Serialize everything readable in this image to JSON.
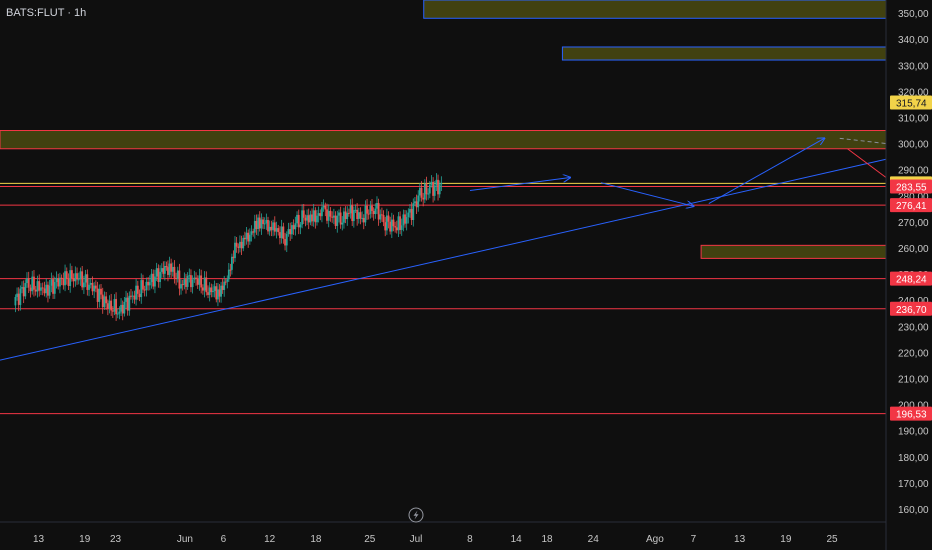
{
  "header": {
    "symbol_label": "BATS:FLUT · 1h"
  },
  "colors": {
    "background": "#0f0f0f",
    "axis_text": "#c7c7c7",
    "candle_up": "#26a69a",
    "candle_down": "#ef5350",
    "support_line": "#f23645",
    "yellow_line": "#f2d349",
    "trendline": "#2962ff",
    "zone_fill": "#4a4a10"
  },
  "chart_data": {
    "type": "candlestick",
    "ylim": [
      155,
      355
    ],
    "y_ticks": [
      160,
      170,
      180,
      190,
      200,
      210,
      220,
      230,
      240,
      250,
      260,
      270,
      280,
      290,
      300,
      310,
      320,
      330,
      340,
      350
    ],
    "x_ticks": [
      {
        "label": "13",
        "day": 13
      },
      {
        "label": "19",
        "day": 19
      },
      {
        "label": "23",
        "day": 23
      },
      {
        "label": "Jun",
        "day": 32
      },
      {
        "label": "6",
        "day": 37
      },
      {
        "label": "12",
        "day": 43
      },
      {
        "label": "18",
        "day": 49
      },
      {
        "label": "25",
        "day": 56
      },
      {
        "label": "Jul",
        "day": 62
      },
      {
        "label": "8",
        "day": 69
      },
      {
        "label": "14",
        "day": 75
      },
      {
        "label": "18",
        "day": 79
      },
      {
        "label": "24",
        "day": 85
      },
      {
        "label": "Ago",
        "day": 93
      },
      {
        "label": "7",
        "day": 98
      },
      {
        "label": "13",
        "day": 104
      },
      {
        "label": "19",
        "day": 110
      },
      {
        "label": "25",
        "day": 116
      }
    ],
    "series": [
      {
        "day": 10,
        "close": 240
      },
      {
        "day": 11.5,
        "close": 246
      },
      {
        "day": 14,
        "close": 244
      },
      {
        "day": 16,
        "close": 248
      },
      {
        "day": 18,
        "close": 249
      },
      {
        "day": 20,
        "close": 245
      },
      {
        "day": 22,
        "close": 238
      },
      {
        "day": 23.5,
        "close": 236
      },
      {
        "day": 25,
        "close": 241
      },
      {
        "day": 27,
        "close": 246
      },
      {
        "day": 29,
        "close": 251
      },
      {
        "day": 30,
        "close": 253
      },
      {
        "day": 31.5,
        "close": 246
      },
      {
        "day": 33,
        "close": 249
      },
      {
        "day": 35,
        "close": 244
      },
      {
        "day": 36.5,
        "close": 243
      },
      {
        "day": 37.5,
        "close": 248
      },
      {
        "day": 38.5,
        "close": 260
      },
      {
        "day": 40,
        "close": 263
      },
      {
        "day": 41.5,
        "close": 270
      },
      {
        "day": 43,
        "close": 269
      },
      {
        "day": 45,
        "close": 264
      },
      {
        "day": 47,
        "close": 272
      },
      {
        "day": 48.5,
        "close": 271
      },
      {
        "day": 50,
        "close": 274
      },
      {
        "day": 52,
        "close": 270
      },
      {
        "day": 53.5,
        "close": 274
      },
      {
        "day": 55,
        "close": 272
      },
      {
        "day": 56.5,
        "close": 276
      },
      {
        "day": 58,
        "close": 270
      },
      {
        "day": 59.5,
        "close": 268
      },
      {
        "day": 61,
        "close": 272
      },
      {
        "day": 62.5,
        "close": 280
      },
      {
        "day": 64,
        "close": 283
      },
      {
        "day": 65.5,
        "close": 284
      }
    ],
    "horizontal_levels": [
      {
        "value": 284.72,
        "label": "284,72",
        "color": "#f2d349"
      },
      {
        "value": 283.55,
        "label": "283,55",
        "color": "#f23645"
      },
      {
        "value": 276.41,
        "label": "276,41",
        "color": "#f23645"
      },
      {
        "value": 248.24,
        "label": "248,24",
        "color": "#f23645"
      },
      {
        "value": 236.7,
        "label": "236,70",
        "color": "#f23645"
      },
      {
        "value": 196.53,
        "label": "196,53",
        "color": "#f23645"
      }
    ],
    "current_price": {
      "value": 315.74,
      "label": "315,74",
      "color": "#f2d349"
    },
    "zones": [
      {
        "start_day": 63,
        "end_day": 123,
        "low": 348,
        "high": 355,
        "border": "#2962ff"
      },
      {
        "start_day": 81,
        "end_day": 123,
        "low": 332,
        "high": 337,
        "border": "#2962ff"
      },
      {
        "start_day": 8,
        "end_day": 123,
        "low": 298,
        "high": 305,
        "border": "#f23645"
      },
      {
        "start_day": 99,
        "end_day": 123,
        "low": 256,
        "high": 261,
        "border": "#f23645"
      }
    ],
    "trendlines": [
      {
        "from": [
          8,
          217
        ],
        "to": [
          123,
          294
        ],
        "color": "#2962ff",
        "arrow": false
      },
      {
        "from": [
          69,
          282
        ],
        "to": [
          82,
          287
        ],
        "color": "#2962ff",
        "arrow": true
      },
      {
        "from": [
          86,
          285
        ],
        "to": [
          98,
          276
        ],
        "color": "#2962ff",
        "arrow": true
      },
      {
        "from": [
          100,
          277
        ],
        "to": [
          115,
          302
        ],
        "color": "#2962ff",
        "arrow": true
      },
      {
        "from": [
          118,
          298
        ],
        "to": [
          123,
          287
        ],
        "color": "#f23645",
        "arrow": false
      },
      {
        "from": [
          117,
          302
        ],
        "to": [
          123,
          300
        ],
        "color": "#8a8f9b",
        "arrow": false
      }
    ]
  }
}
